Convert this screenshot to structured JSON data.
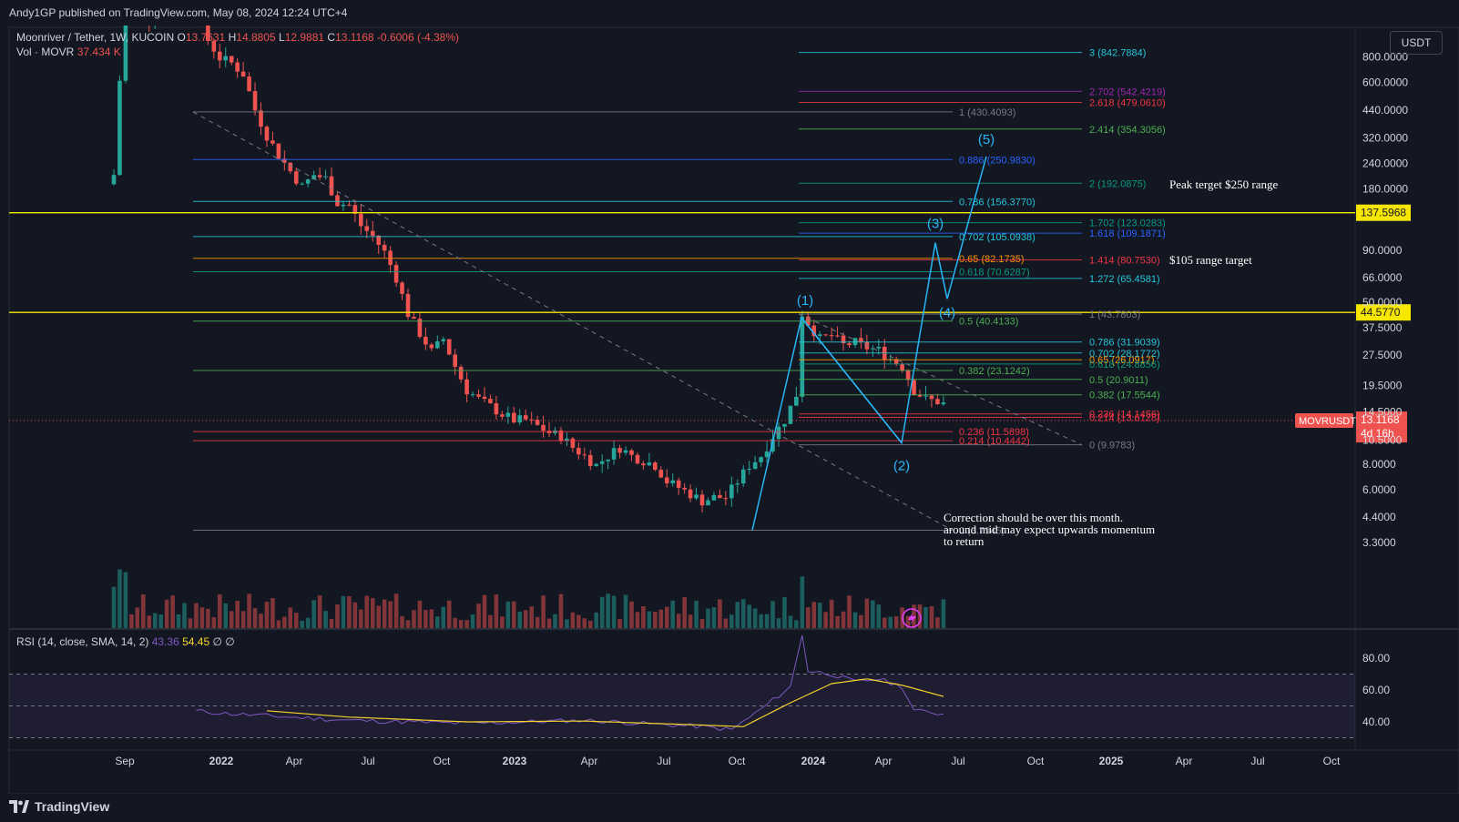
{
  "publisher_line": "Andy1GP published on TradingView.com, May 08, 2024 12:24 UTC+4",
  "legend": {
    "symbol": "Moonriver / Tether, 1W, KUCOIN",
    "o_label": "O",
    "o": "13.7631",
    "h_label": "H",
    "h": "14.8805",
    "l_label": "L",
    "l": "12.9881",
    "c_label": "C",
    "c": "13.1168",
    "change": "-0.6006 (-4.38%)",
    "vol_label": "Vol · MOVR",
    "vol_value": "37.434 K"
  },
  "currency_button": "USDT",
  "brand": "TradingView",
  "chart_data": {
    "type": "candlestick",
    "symbol": "MOVRUSDT",
    "y_scale": "log",
    "y_ticks": [
      "800.0000",
      "600.0000",
      "440.0000",
      "320.0000",
      "240.0000",
      "180.0000",
      "137.5968",
      "90.0000",
      "66.0000",
      "50.0000",
      "44.5770",
      "37.5000",
      "27.5000",
      "19.5000",
      "14.5000",
      "10.5000",
      "8.0000",
      "6.0000",
      "4.4000",
      "3.3000"
    ],
    "x_ticks": [
      "Sep",
      "2022",
      "Apr",
      "Jul",
      "Oct",
      "2023",
      "Apr",
      "Jul",
      "Oct",
      "2024",
      "Apr",
      "Jul",
      "Oct",
      "2025",
      "Apr",
      "Jul",
      "Oct"
    ],
    "price_label": "MOVRUSDT",
    "price_value": "13.1168",
    "countdown": "4d 16h",
    "horizontal_levels": [
      {
        "value": "137.5968",
        "color": "#f7e600"
      },
      {
        "value": "44.5770",
        "color": "#f7e600"
      }
    ],
    "fib_labels": [
      {
        "text": "3 (842.7884)",
        "color": "#26c6da"
      },
      {
        "text": "2.702 (542.4219)",
        "color": "#9c27b0"
      },
      {
        "text": "2.618 (479.0610)",
        "color": "#f23645"
      },
      {
        "text": "1 (430.4093)",
        "color": "#787b86"
      },
      {
        "text": "2.414 (354.3056)",
        "color": "#4caf50"
      },
      {
        "text": "0.886 (250.9830)",
        "color": "#2962ff"
      },
      {
        "text": "2 (192.0875)",
        "color": "#089981"
      },
      {
        "text": "0.786 (156.3770)",
        "color": "#26c6da"
      },
      {
        "text": "1.702 (123.0283)",
        "color": "#089981"
      },
      {
        "text": "1.618 (109.1871)",
        "color": "#2962ff"
      },
      {
        "text": "0.702 (105.0938)",
        "color": "#26c6da"
      },
      {
        "text": "0.65 (82.1735)",
        "color": "#ff9800"
      },
      {
        "text": "1.414 (80.7530)",
        "color": "#f23645"
      },
      {
        "text": "0.618 (70.6287)",
        "color": "#089981"
      },
      {
        "text": "1.272 (65.4581)",
        "color": "#26c6da"
      },
      {
        "text": "1 (43.7803)",
        "color": "#787b86"
      },
      {
        "text": "0.5 (40.4133)",
        "color": "#4caf50"
      },
      {
        "text": "0.786 (31.9039)",
        "color": "#26c6da"
      },
      {
        "text": "0.702 (28.1772)",
        "color": "#26c6da"
      },
      {
        "text": "0.65 (26.0917)",
        "color": "#ff9800"
      },
      {
        "text": "0.618 (24.8856)",
        "color": "#089981"
      },
      {
        "text": "0.382 (23.1242)",
        "color": "#4caf50"
      },
      {
        "text": "0.5 (20.9011)",
        "color": "#4caf50"
      },
      {
        "text": "0.382 (17.5544)",
        "color": "#4caf50"
      },
      {
        "text": "0.236 (14.1456)",
        "color": "#f23645"
      },
      {
        "text": "0.214 (13.6128)",
        "color": "#f23645"
      },
      {
        "text": "0.236 (11.5898)",
        "color": "#f23645"
      },
      {
        "text": "0.214 (10.4442)",
        "color": "#f23645"
      },
      {
        "text": "0 (9.9783)",
        "color": "#787b86"
      },
      {
        "text": "0 (3.7945)",
        "color": "#787b86"
      }
    ],
    "wave_labels": [
      "(1)",
      "(2)",
      "(3)",
      "(4)",
      "(5)"
    ],
    "annotations": [
      "Peak terget $250 range",
      "$105 range target",
      "Correction should be over this month.",
      "around mid may expect upwards momentum",
      "to return"
    ],
    "rsi": {
      "label": "RSI (14, close, SMA, 14, 2)",
      "rsi_value": "43.36",
      "sma_value": "54.45",
      "extra": "∅  ∅",
      "ticks": [
        "80.00",
        "60.00",
        "40.00"
      ],
      "levels": [
        70,
        50,
        30
      ]
    },
    "colors": {
      "up": "#26a69a",
      "down": "#ef5350",
      "rsi_line": "#7e57c2",
      "rsi_sma": "#f5d32b",
      "wave_path": "#29b6f6"
    }
  }
}
